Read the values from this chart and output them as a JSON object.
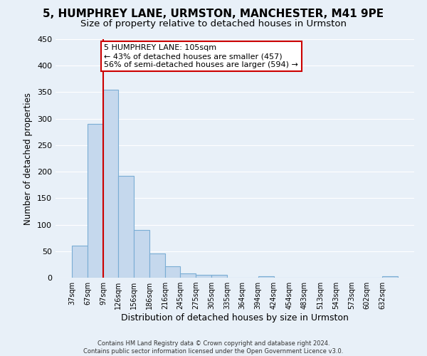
{
  "title": "5, HUMPHREY LANE, URMSTON, MANCHESTER, M41 9PE",
  "subtitle": "Size of property relative to detached houses in Urmston",
  "xlabel": "Distribution of detached houses by size in Urmston",
  "ylabel": "Number of detached properties",
  "bin_labels": [
    "37sqm",
    "67sqm",
    "97sqm",
    "126sqm",
    "156sqm",
    "186sqm",
    "216sqm",
    "245sqm",
    "275sqm",
    "305sqm",
    "335sqm",
    "364sqm",
    "394sqm",
    "424sqm",
    "454sqm",
    "483sqm",
    "513sqm",
    "543sqm",
    "573sqm",
    "602sqm",
    "632sqm"
  ],
  "bar_values": [
    60,
    290,
    355,
    192,
    90,
    46,
    22,
    8,
    5,
    5,
    0,
    0,
    3,
    0,
    0,
    0,
    0,
    0,
    0,
    0,
    3
  ],
  "bar_color": "#c5d8ed",
  "bar_edge_color": "#7aadd4",
  "vline_x_bin": 2,
  "vline_color": "#cc0000",
  "annotation_title": "5 HUMPHREY LANE: 105sqm",
  "annotation_line1": "← 43% of detached houses are smaller (457)",
  "annotation_line2": "56% of semi-detached houses are larger (594) →",
  "annotation_box_color": "#ffffff",
  "annotation_box_edge": "#cc0000",
  "ylim": [
    0,
    450
  ],
  "yticks": [
    0,
    50,
    100,
    150,
    200,
    250,
    300,
    350,
    400,
    450
  ],
  "bin_edges_sqm": [
    37,
    67,
    97,
    126,
    156,
    186,
    216,
    245,
    275,
    305,
    335,
    364,
    394,
    424,
    454,
    483,
    513,
    543,
    573,
    602,
    632,
    662
  ],
  "footer_line1": "Contains HM Land Registry data © Crown copyright and database right 2024.",
  "footer_line2": "Contains public sector information licensed under the Open Government Licence v3.0.",
  "background_color": "#e8f0f8",
  "grid_color": "#ffffff",
  "title_fontsize": 11,
  "subtitle_fontsize": 9.5
}
